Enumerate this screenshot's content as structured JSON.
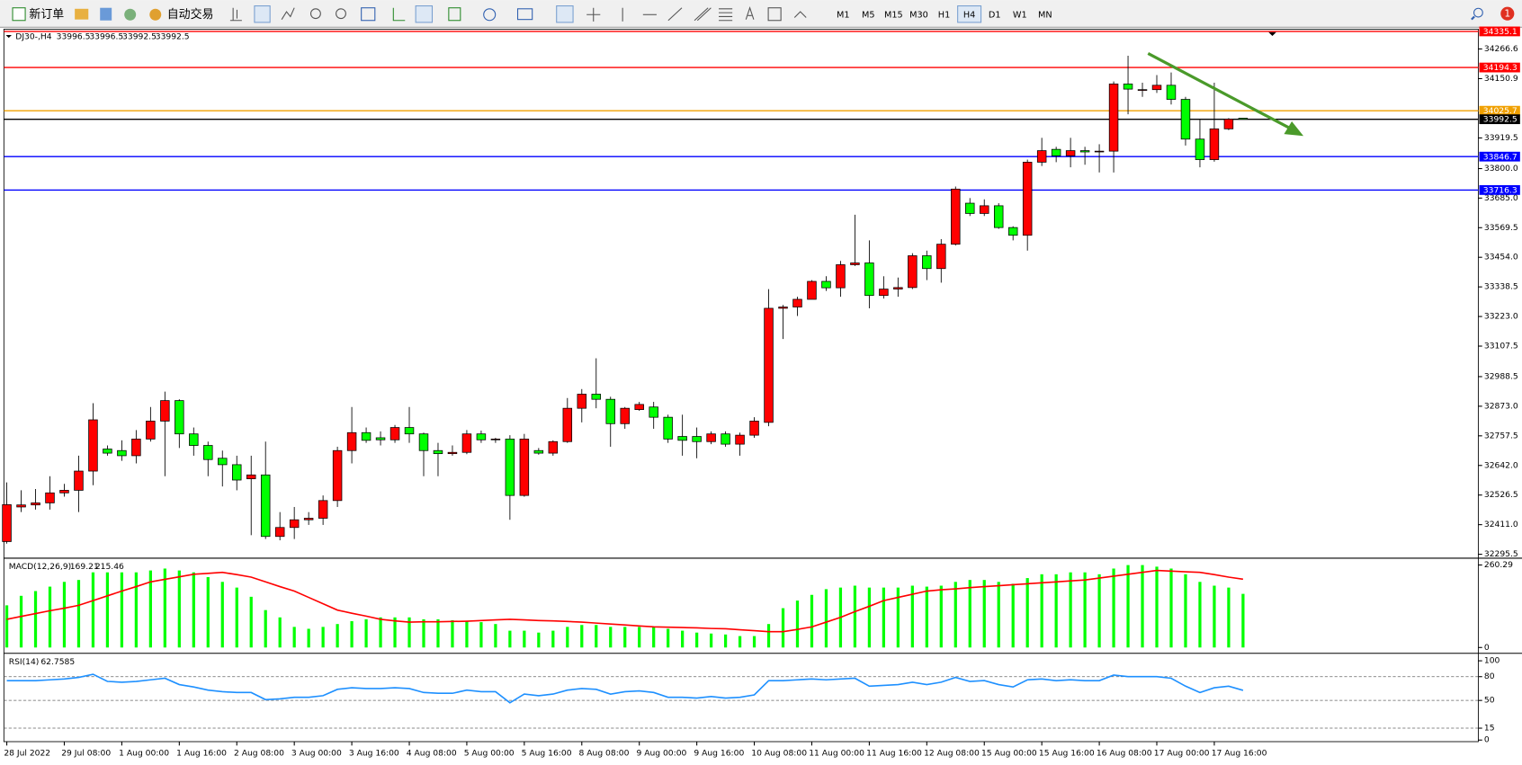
{
  "toolbar": {
    "new_order": "新订单",
    "auto_trading": "自动交易",
    "timeframes": [
      "M1",
      "M5",
      "M15",
      "M30",
      "H1",
      "H4",
      "D1",
      "W1",
      "MN"
    ],
    "active_timeframe": "H4",
    "notifications": 1
  },
  "chart_data": [
    {
      "type": "candlestick",
      "title": "DJ30-,H4",
      "up_color": "#ff0000",
      "down_color": "#00ff00",
      "categories": [
        "28 Jul 2022",
        null,
        null,
        null,
        "29 Jul 08:00",
        null,
        null,
        null,
        "1 Aug 00:00",
        null,
        null,
        null,
        "1 Aug 16:00",
        null,
        null,
        null,
        "2 Aug 08:00",
        null,
        null,
        null,
        "3 Aug 00:00",
        null,
        null,
        null,
        "3 Aug 16:00",
        null,
        null,
        null,
        "4 Aug 08:00",
        null,
        null,
        null,
        "5 Aug 00:00",
        null,
        null,
        null,
        "5 Aug 16:00",
        null,
        null,
        null,
        "8 Aug 08:00",
        null,
        null,
        null,
        "9 Aug 00:00",
        null,
        null,
        null,
        "9 Aug 16:00",
        null,
        null,
        null,
        "10 Aug 08:00",
        null,
        null,
        null,
        "11 Aug 00:00",
        null,
        null,
        null,
        "11 Aug 16:00",
        null,
        null,
        null,
        "12 Aug 08:00",
        null,
        null,
        null,
        "15 Aug 00:00",
        null,
        null,
        null,
        "15 Aug 16:00",
        null,
        null,
        null,
        "16 Aug 08:00",
        null,
        null,
        null,
        "17 Aug 00:00",
        null,
        null,
        null,
        "17 Aug 16:00",
        null,
        null
      ],
      "open": [
        32345,
        32480,
        32488,
        32496,
        32535,
        32545,
        32620,
        32706,
        32700,
        32680,
        32745,
        32815,
        32895,
        32765,
        32720,
        32670,
        32645,
        32590,
        32605,
        32365,
        32400,
        32430,
        32436,
        32505,
        32700,
        32770,
        32750,
        32742,
        32790,
        32765,
        32700,
        32688,
        32693,
        32765,
        32742,
        32745,
        32525,
        32700,
        32690,
        32735,
        32865,
        32920,
        32900,
        32805,
        32860,
        32870,
        32830,
        32755,
        32755,
        32735,
        32765,
        32725,
        32760,
        32810,
        33255,
        33260,
        33290,
        33360,
        33335,
        33425,
        33432,
        33305,
        33330,
        33336,
        33460,
        33410,
        33505,
        33665,
        33625,
        33655,
        33570,
        33540,
        33825,
        33875,
        33850,
        33870,
        33865,
        33868,
        34130,
        34108,
        34108,
        34125,
        34070,
        33915,
        33835,
        33955,
        33996.5
      ],
      "high": [
        32576,
        32545,
        32550,
        32600,
        32570,
        32680,
        32885,
        32720,
        32740,
        32780,
        32870,
        32930,
        32900,
        32790,
        32735,
        32700,
        32680,
        32680,
        32735,
        32460,
        32480,
        32460,
        32525,
        32715,
        32870,
        32790,
        32775,
        32800,
        32870,
        32770,
        32730,
        32720,
        32780,
        32778,
        32750,
        32760,
        32765,
        32710,
        32740,
        32905,
        32940,
        33060,
        32910,
        32870,
        32890,
        32890,
        32840,
        32840,
        32790,
        32775,
        32775,
        32770,
        32830,
        33330,
        33268,
        33300,
        33365,
        33380,
        33440,
        33620,
        33520,
        33380,
        33375,
        33470,
        33480,
        33525,
        33730,
        33685,
        33680,
        33665,
        33575,
        33835,
        33920,
        33885,
        33920,
        33885,
        33895,
        34140,
        34240,
        34135,
        34165,
        34175,
        34080,
        33990,
        34135,
        33997,
        33996.5
      ],
      "low": [
        32337,
        32460,
        32470,
        32470,
        32520,
        32460,
        32565,
        32680,
        32660,
        32650,
        32735,
        32600,
        32710,
        32680,
        32600,
        32560,
        32545,
        32370,
        32355,
        32350,
        32355,
        32410,
        32410,
        32480,
        32650,
        32730,
        32720,
        32730,
        32730,
        32600,
        32600,
        32680,
        32686,
        32730,
        32730,
        32430,
        32520,
        32684,
        32680,
        32730,
        32810,
        32865,
        32715,
        32785,
        32855,
        32785,
        32730,
        32680,
        32670,
        32725,
        32715,
        32680,
        32750,
        32795,
        33135,
        33225,
        33290,
        33323,
        33300,
        33420,
        33255,
        33293,
        33300,
        33330,
        33365,
        33355,
        33500,
        33615,
        33615,
        33565,
        33520,
        33480,
        33810,
        33825,
        33805,
        33815,
        33785,
        33785,
        34012,
        34080,
        34095,
        34050,
        33890,
        33805,
        33827,
        33950,
        33992.5
      ],
      "close": [
        32489,
        32488,
        32496,
        32535,
        32545,
        32620,
        32820,
        32690,
        32680,
        32745,
        32815,
        32895,
        32765,
        32720,
        32665,
        32645,
        32585,
        32605,
        32365,
        32400,
        32430,
        32436,
        32505,
        32700,
        32770,
        32740,
        32742,
        32790,
        32765,
        32700,
        32688,
        32693,
        32765,
        32742,
        32745,
        32525,
        32745,
        32690,
        32735,
        32865,
        32920,
        32900,
        32805,
        32865,
        32880,
        32830,
        32745,
        32740,
        32735,
        32765,
        32725,
        32760,
        32815,
        33255,
        33260,
        33290,
        33360,
        33335,
        33425,
        33432,
        33305,
        33330,
        33336,
        33460,
        33410,
        33505,
        33720,
        33625,
        33655,
        33570,
        33540,
        33825,
        33870,
        33850,
        33870,
        33865,
        33868,
        34130,
        34110,
        34108,
        34125,
        34070,
        33915,
        33835,
        33955,
        33993,
        33992.5
      ],
      "levels": [
        {
          "value": 34335.1,
          "color": "#ff0000"
        },
        {
          "value": 34194.3,
          "color": "#ff0000"
        },
        {
          "value": 34025.7,
          "color": "#f0a000"
        },
        {
          "value": 33846.7,
          "color": "#0000ff"
        },
        {
          "value": 33716.3,
          "color": "#0000ff"
        }
      ],
      "current_price_color": "#000000",
      "ylim": [
        32284,
        34340
      ],
      "yticks": [
        34266.6,
        34150.9,
        33919.5,
        {
          "value": 33800,
          "label": "33800.0"
        },
        {
          "value": 33685,
          "label": "33685.0"
        },
        33569.5,
        {
          "value": 33454,
          "label": "33454.0"
        },
        33338.5,
        {
          "value": 33223,
          "label": "33223.0"
        },
        33107.5,
        32988.5,
        {
          "value": 32873,
          "label": "32873.0"
        },
        32757.5,
        {
          "value": 32642,
          "label": "32642.0"
        },
        32526.5,
        {
          "value": 32411,
          "label": "32411.0"
        },
        32295.5
      ]
    },
    {
      "type": "macd",
      "title": "MACD(12,26,9)",
      "color": "#00ff00",
      "signal_color": "#ff0000",
      "values": [
        133,
        163,
        178,
        192,
        207,
        213,
        237,
        237,
        237,
        237,
        243,
        249,
        243,
        237,
        222,
        207,
        189,
        160,
        118,
        95,
        65,
        59,
        65,
        74,
        83,
        89,
        95,
        95,
        95,
        89,
        89,
        86,
        83,
        80,
        74,
        53,
        53,
        47,
        53,
        65,
        71,
        71,
        65,
        65,
        65,
        65,
        59,
        53,
        47,
        44,
        41,
        36,
        36,
        74,
        124,
        148,
        166,
        184,
        189,
        195,
        189,
        189,
        189,
        195,
        192,
        195,
        207,
        213,
        213,
        207,
        201,
        219,
        231,
        231,
        237,
        237,
        231,
        249,
        260,
        260,
        255,
        249,
        231,
        207,
        195,
        189,
        169.21
      ],
      "signal": [
        89,
        98,
        107,
        116,
        124,
        133,
        148,
        163,
        178,
        192,
        207,
        215,
        223,
        231,
        234,
        237,
        230,
        222,
        207,
        192,
        178,
        158,
        138,
        118,
        108,
        99,
        89,
        84,
        80,
        81,
        81,
        82,
        83,
        85,
        87,
        89,
        87,
        85,
        84,
        82,
        80,
        77,
        74,
        71,
        68,
        65,
        64,
        63,
        62,
        60,
        59,
        56,
        53,
        50,
        50,
        57,
        65,
        80,
        95,
        113,
        130,
        148,
        158,
        168,
        178,
        182,
        185,
        189,
        192,
        195,
        198,
        201,
        204,
        207,
        210,
        213,
        219,
        225,
        231,
        237,
        243,
        241,
        239,
        237,
        230,
        222,
        215.46
      ],
      "ylim": [
        -15.3,
        275.6
      ],
      "yticks": [
        260.29,
        0
      ]
    },
    {
      "type": "line",
      "title": "RSI(14)",
      "color": "#1e90ff",
      "values": [
        75,
        75,
        75,
        76,
        77,
        79,
        83,
        74,
        73,
        74,
        76,
        78,
        70,
        67,
        63,
        61,
        60,
        60,
        51,
        52,
        54,
        54,
        56,
        64,
        66,
        65,
        65,
        66,
        65,
        60,
        59,
        59,
        63,
        61,
        61,
        47,
        58,
        56,
        58,
        63,
        65,
        64,
        58,
        61,
        62,
        60,
        54,
        54,
        53,
        55,
        53,
        54,
        57,
        75,
        75,
        76,
        77,
        76,
        77,
        78,
        68,
        69,
        70,
        73,
        70,
        73,
        79,
        74,
        75,
        70,
        67,
        76,
        77,
        75,
        76,
        75,
        75,
        82,
        80,
        80,
        80,
        78,
        68,
        60,
        66,
        68,
        62.7585
      ],
      "ylim": [
        -2,
        107
      ],
      "yticks": [
        100,
        80,
        50,
        15,
        0
      ]
    }
  ]
}
